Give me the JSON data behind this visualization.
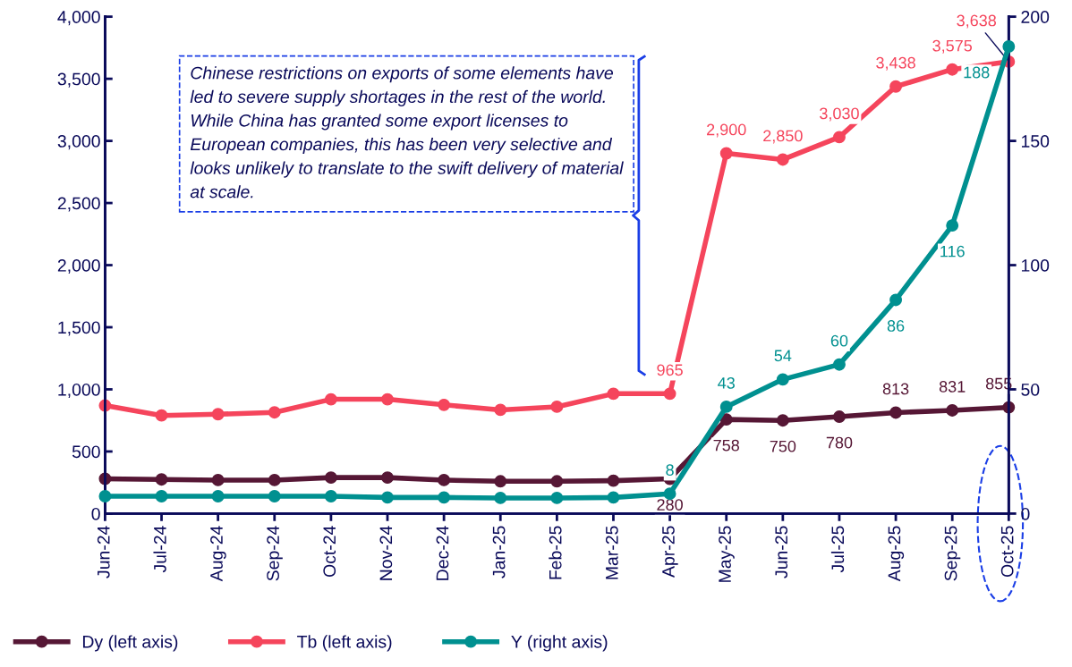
{
  "chart_data": {
    "type": "line",
    "categories": [
      "Jun-24",
      "Jul-24",
      "Aug-24",
      "Sep-24",
      "Oct-24",
      "Nov-24",
      "Dec-24",
      "Jan-25",
      "Feb-25",
      "Mar-25",
      "Apr-25",
      "May-25",
      "Jun-25",
      "Jul-25",
      "Aug-25",
      "Sep-25",
      "Oct-25"
    ],
    "series": [
      {
        "name": "Dy (left axis)",
        "color": "#561735",
        "values": [
          280,
          275,
          270,
          270,
          290,
          290,
          270,
          260,
          260,
          265,
          280,
          758,
          750,
          780,
          813,
          831,
          855
        ],
        "value_labels": [
          null,
          null,
          null,
          null,
          null,
          null,
          null,
          null,
          null,
          null,
          "280",
          "758",
          "750",
          "780",
          "813",
          "831",
          "855"
        ]
      },
      {
        "name": "Tb (left axis)",
        "color": "#f5455c",
        "values": [
          870,
          790,
          800,
          815,
          920,
          920,
          875,
          835,
          860,
          965,
          965,
          2900,
          2850,
          3030,
          3438,
          3575,
          3638
        ],
        "value_labels": [
          null,
          null,
          null,
          null,
          null,
          null,
          null,
          null,
          null,
          null,
          "965",
          "2,900",
          "2,850",
          "3,030",
          "3,438",
          "3,575",
          "3,638"
        ]
      },
      {
        "name": "Y (right axis)",
        "color": "#009090",
        "axis": "y2",
        "values": [
          7,
          7,
          7,
          7,
          7,
          6.5,
          6.5,
          6.3,
          6.3,
          6.5,
          8,
          43,
          54,
          60,
          86,
          116,
          188
        ],
        "value_labels": [
          null,
          null,
          null,
          null,
          null,
          null,
          null,
          null,
          null,
          null,
          "8",
          "43",
          "54",
          "60",
          "86",
          "116",
          "188"
        ]
      }
    ],
    "ylim": [
      0,
      4000
    ],
    "yticks": [
      0,
      {
        "value": 500,
        "label": "500"
      },
      {
        "value": 1000,
        "label": "1,000"
      },
      {
        "value": 1500,
        "label": "1,500"
      },
      {
        "value": 2000,
        "label": "2,000"
      },
      {
        "value": 2500,
        "label": "2,500"
      },
      {
        "value": 3000,
        "label": "3,000"
      },
      {
        "value": 3500,
        "label": "3,500"
      },
      {
        "value": 4000,
        "label": "4,000"
      }
    ],
    "y2lim": [
      0,
      200
    ],
    "y2ticks": [
      0,
      50,
      100,
      150,
      200
    ],
    "marker": "circle",
    "line_style": "solid",
    "grid": false,
    "legend": "bottom left",
    "annotations": [
      "Chinese restrictions on exports of some elements have led to severe supply shortages in the rest of the world. While China has granted some export licenses to European companies, this has been very selective and looks unlikely to translate to the swift delivery of material at scale."
    ]
  }
}
